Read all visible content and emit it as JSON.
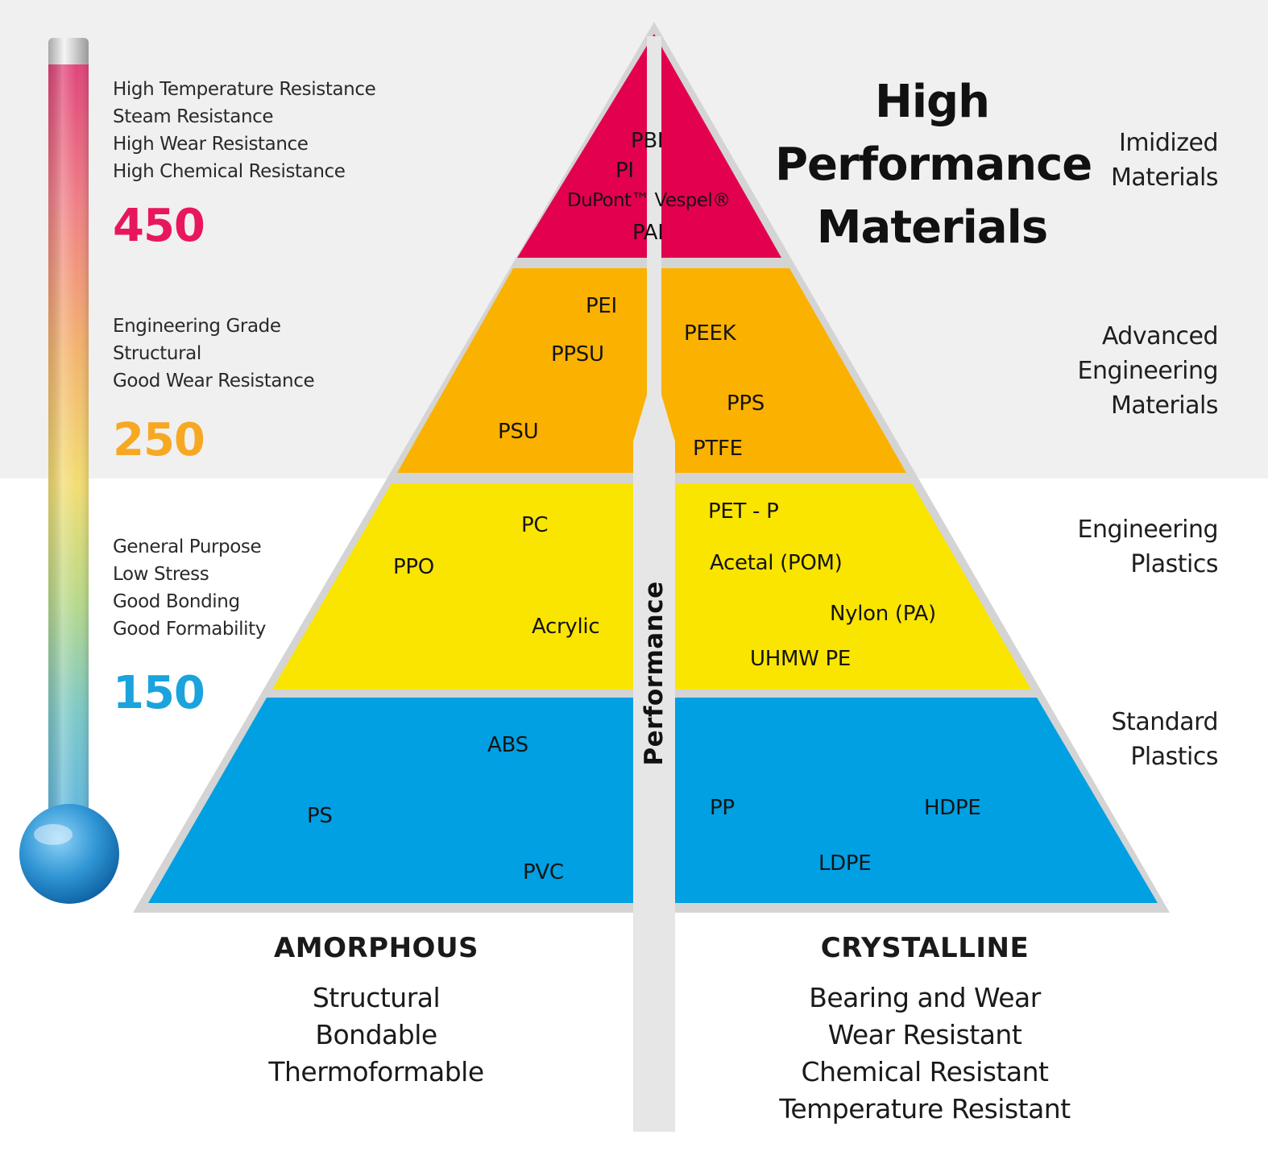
{
  "thermometer": {
    "temperatures": [
      {
        "value": "450",
        "color": "#e8175d"
      },
      {
        "value": "250",
        "color": "#f7a823"
      },
      {
        "value": "150",
        "color": "#1aa3dd"
      }
    ],
    "properties": [
      [
        "High Temperature Resistance",
        "Steam Resistance",
        "High Wear Resistance",
        "High Chemical Resistance"
      ],
      [
        "Engineering Grade",
        "Structural",
        "Good Wear Resistance"
      ],
      [
        "General Purpose",
        "Low Stress",
        "Good Bonding",
        "Good Formability"
      ]
    ]
  },
  "title": [
    "High",
    "Performance",
    "Materials"
  ],
  "tiers": [
    {
      "label": [
        "Imidized",
        "Materials"
      ],
      "color": "#e3004f"
    },
    {
      "label": [
        "Advanced",
        "Engineering",
        "Materials"
      ],
      "color": "#fbb100"
    },
    {
      "label": [
        "Engineering",
        "Plastics"
      ],
      "color": "#fae500"
    },
    {
      "label": [
        "Standard",
        "Plastics"
      ],
      "color": "#00a0e3"
    }
  ],
  "materials": {
    "imidized": [
      "PBI",
      "PI",
      "DuPont™ Vespel®",
      "PAI"
    ],
    "advanced_amorphous": [
      "PEI",
      "PPSU",
      "PSU"
    ],
    "advanced_crystalline": [
      "PEEK",
      "PPS",
      "PTFE"
    ],
    "engineering_amorphous": [
      "PC",
      "PPO",
      "Acrylic"
    ],
    "engineering_crystalline": [
      "PET - P",
      "Acetal (POM)",
      "Nylon (PA)",
      "UHMW PE"
    ],
    "standard_amorphous": [
      "ABS",
      "PS",
      "PVC"
    ],
    "standard_crystalline": [
      "PP",
      "HDPE",
      "LDPE"
    ]
  },
  "axis_label": "Performance",
  "amorphous": {
    "heading": "AMORPHOUS",
    "traits": [
      "Structural",
      "Bondable",
      "Thermoformable"
    ]
  },
  "crystalline": {
    "heading": "CRYSTALLINE",
    "traits": [
      "Bearing and Wear",
      "Wear Resistant",
      "Chemical Resistant",
      "Temperature Resistant"
    ]
  }
}
